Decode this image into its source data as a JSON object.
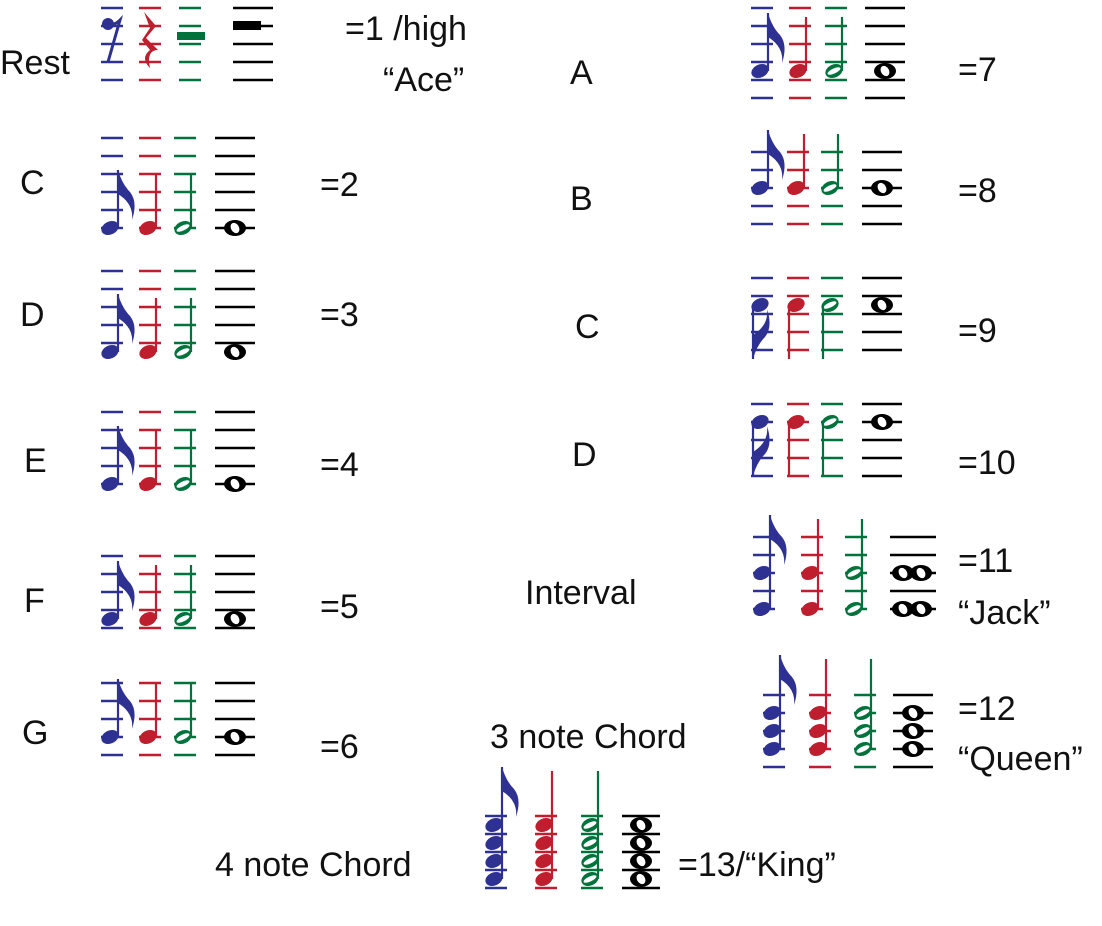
{
  "colors": {
    "eighth": "#2e3192",
    "quarter": "#be1e2d",
    "half": "#00733c",
    "whole": "#000000"
  },
  "groups": [
    {
      "id": "rest",
      "label": "Rest",
      "value": "=1 /high",
      "nickname": "“Ace”",
      "kind": "rest"
    },
    {
      "id": "c-low",
      "label": "C",
      "value": "=2",
      "notes": [
        10
      ]
    },
    {
      "id": "d-low",
      "label": "D",
      "value": "=3",
      "notes": [
        9
      ]
    },
    {
      "id": "e-low",
      "label": "E",
      "value": "=4",
      "notes": [
        8
      ]
    },
    {
      "id": "f-low",
      "label": "F",
      "value": "=5",
      "notes": [
        7
      ]
    },
    {
      "id": "g-low",
      "label": "G",
      "value": "=6",
      "notes": [
        6
      ]
    },
    {
      "id": "a",
      "label": "A",
      "value": "=7",
      "notes": [
        7
      ]
    },
    {
      "id": "b",
      "label": "B",
      "value": "=8",
      "notes": [
        4
      ]
    },
    {
      "id": "c-high",
      "label": "C",
      "value": "=9",
      "notes": [
        3
      ]
    },
    {
      "id": "d-high",
      "label": "D",
      "value": "=10",
      "notes": [
        2
      ]
    },
    {
      "id": "interval",
      "label": "Interval",
      "value": "=11",
      "nickname": "“Jack”",
      "notes": [
        4,
        8
      ]
    },
    {
      "id": "chord3",
      "label": "3 note Chord",
      "value": "=12",
      "nickname": "“Queen”",
      "notes": [
        2,
        4,
        6
      ]
    },
    {
      "id": "chord4",
      "label": "4 note Chord",
      "value": "=13/“King”",
      "notes": [
        1,
        3,
        5,
        7
      ]
    }
  ]
}
